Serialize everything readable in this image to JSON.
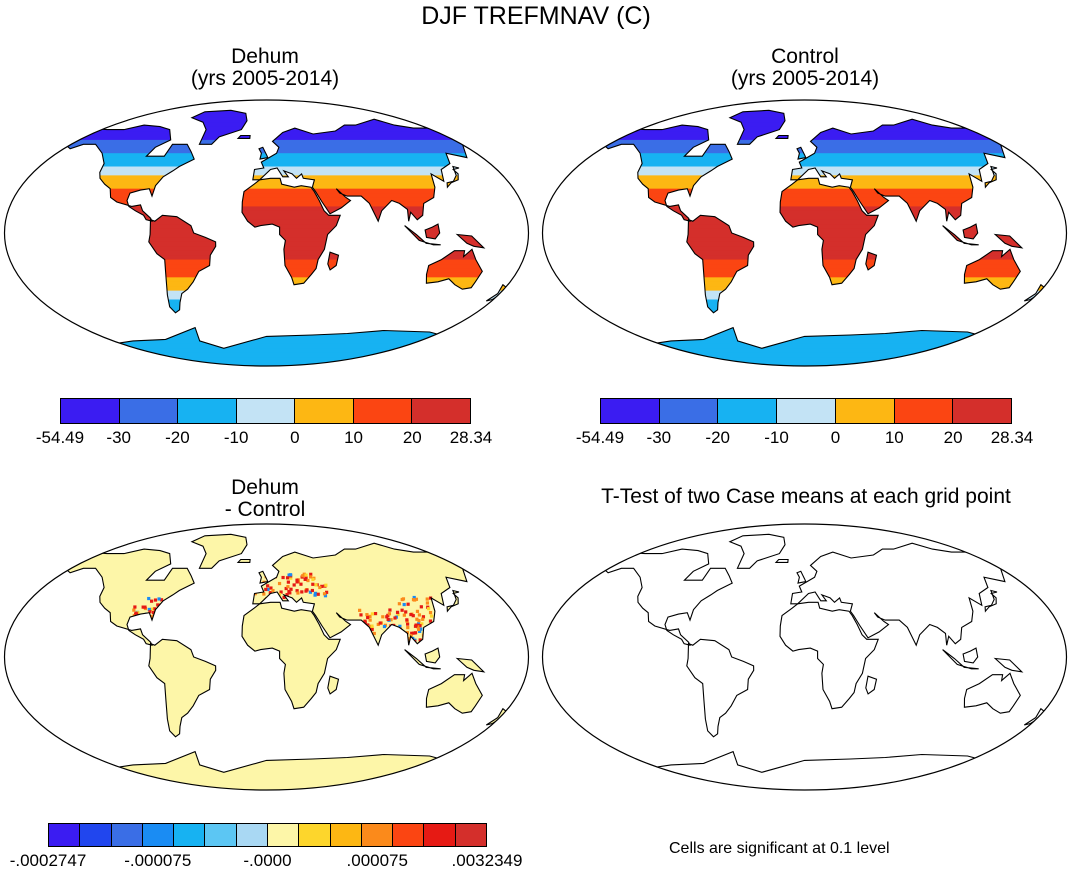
{
  "main_title": "DJF TREFMNAV (C)",
  "panels": {
    "dehum": {
      "title1": "Dehum",
      "title2": "(yrs 2005-2014)"
    },
    "control": {
      "title1": "Control",
      "title2": "(yrs 2005-2014)"
    },
    "diff": {
      "title1": "Dehum",
      "title2": "- Control"
    },
    "ttest": {
      "title1": "T-Test of two Case means at each grid point",
      "note": "Cells are significant at 0.1 level"
    }
  },
  "colorbar_abs": {
    "labels": [
      "-54.49",
      "-30",
      "-20",
      "-10",
      "0",
      "10",
      "20",
      "28.34"
    ],
    "colors": [
      "#3b1cf2",
      "#3a6ee6",
      "#17b2f2",
      "#c3e3f5",
      "#fdb713",
      "#fb4512",
      "#d42f2b"
    ]
  },
  "colorbar_diff": {
    "labels": [
      "-.0002747",
      "-.000075",
      "-.0000",
      ".000075",
      ".0032349"
    ],
    "colors": [
      "#3b1cf2",
      "#2146ee",
      "#3a6ee6",
      "#1a8cf3",
      "#17b2f2",
      "#5cc6f3",
      "#a9d8f3",
      "#fdf6a8",
      "#fdd62c",
      "#fdb713",
      "#fb8a1b",
      "#fb4512",
      "#e61a14",
      "#d42f2b"
    ]
  },
  "map_colors": {
    "polar": "#3b1cf2",
    "cold": "#3a6ee6",
    "cool": "#17b2f2",
    "mild": "#c3e3f5",
    "warm": "#fdb713",
    "hot": "#fb4512",
    "tropical": "#d42f2b",
    "diff_base": "#fdf6a8",
    "diff_hot": "#e61a14",
    "diff_warm": "#fb8a1b",
    "diff_cool": "#1a8cf3"
  }
}
